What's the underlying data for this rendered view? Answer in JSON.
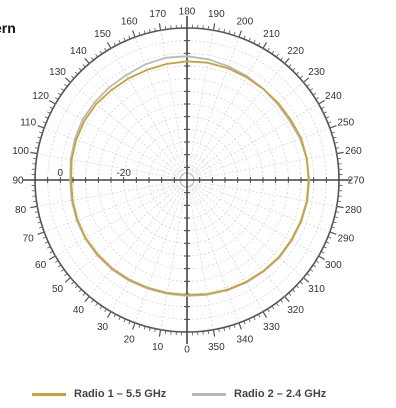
{
  "title": "ern",
  "colors": {
    "radio1": "#C9A23A",
    "radio2": "#B9B9B9",
    "axis": "#555555",
    "grid": "#cccccc"
  },
  "chart_data": {
    "type": "polar-line",
    "title": "ern",
    "angular_labels": [
      "0",
      "10",
      "20",
      "30",
      "40",
      "50",
      "60",
      "70",
      "80",
      "90",
      "100",
      "110",
      "120",
      "130",
      "140",
      "150",
      "160",
      "170",
      "180",
      "190",
      "200",
      "210",
      "220",
      "230",
      "240",
      "250",
      "260",
      "270",
      "280",
      "290",
      "300",
      "310",
      "320",
      "330",
      "340",
      "350"
    ],
    "radial_tick_labels": [
      "-20",
      "0"
    ],
    "series": [
      {
        "name": "Radio 1 – 5.5 GHz",
        "color": "#C9A23A",
        "angles": [
          0,
          10,
          20,
          30,
          40,
          50,
          60,
          70,
          80,
          90,
          100,
          110,
          120,
          130,
          140,
          150,
          160,
          170,
          180,
          190,
          200,
          210,
          220,
          230,
          240,
          250,
          260,
          270,
          280,
          290,
          300,
          310,
          320,
          330,
          340,
          350
        ],
        "values": [
          -3.7,
          -3.8,
          -3.8,
          -3.6,
          -3.4,
          -3.3,
          -3.1,
          -3.2,
          -3.3,
          -3.4,
          -3.0,
          -2.8,
          -2.6,
          -2.6,
          -2.9,
          -3.0,
          -3.0,
          -2.8,
          -2.5,
          -2.4,
          -2.4,
          -2.5,
          -2.5,
          -2.3,
          -2.1,
          -1.6,
          -1.6,
          -1.6,
          -1.6,
          -1.8,
          -2.0,
          -2.1,
          -2.5,
          -2.8,
          -3.1,
          -3.4
        ]
      },
      {
        "name": "Radio 2 – 2.4 GHz",
        "color": "#B9B9B9",
        "angles": [
          0,
          10,
          20,
          30,
          40,
          50,
          60,
          70,
          80,
          90,
          100,
          110,
          120,
          130,
          140,
          150,
          160,
          170,
          180,
          190,
          200,
          210,
          220,
          230,
          240,
          250,
          260,
          270,
          280,
          290,
          300,
          310,
          320,
          330,
          340,
          350
        ],
        "values": [
          -3.4,
          -3.5,
          -3.5,
          -3.3,
          -3.1,
          -3.0,
          -2.9,
          -2.9,
          -3.0,
          -3.1,
          -2.7,
          -2.3,
          -1.9,
          -1.9,
          -1.8,
          -1.7,
          -1.2,
          -0.8,
          -0.9,
          -1.3,
          -1.8,
          -2.1,
          -2.4,
          -2.7,
          -2.6,
          -2.0,
          -1.6,
          -1.4,
          -1.4,
          -1.6,
          -1.8,
          -1.9,
          -2.3,
          -2.6,
          -2.9,
          -3.2
        ]
      }
    ],
    "legend_position": "bottom",
    "grid": true
  },
  "legend": [
    {
      "label": "Radio 1 – 5.5 GHz",
      "color": "#C9A23A"
    },
    {
      "label": "Radio 2 – 2.4 GHz",
      "color": "#B9B9B9"
    }
  ]
}
